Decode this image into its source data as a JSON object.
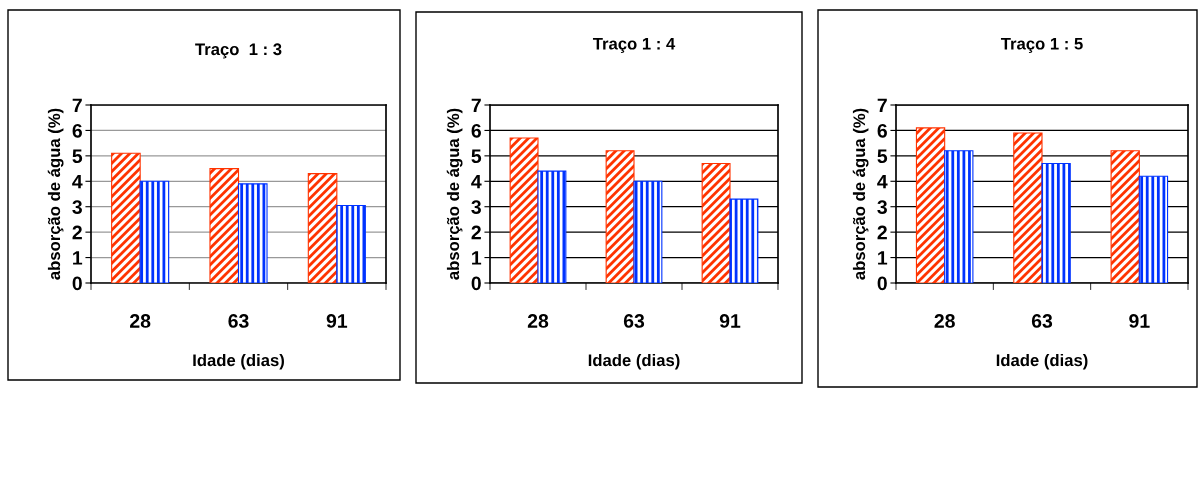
{
  "chart_data": [
    {
      "type": "bar",
      "title": "Traço  1 : 3",
      "xlabel": "Idade (dias)",
      "ylabel": "absorção de água (%)",
      "categories": [
        "28",
        "63",
        "91"
      ],
      "series": [
        {
          "color": "#ff3300",
          "values": [
            5.1,
            4.5,
            4.3
          ]
        },
        {
          "color": "#0033ff",
          "values": [
            4.0,
            3.9,
            3.05
          ]
        }
      ],
      "ylim": [
        0,
        7
      ],
      "yticks": [
        0,
        1,
        2,
        3,
        4,
        5,
        6,
        7
      ],
      "grid": "y"
    },
    {
      "type": "bar",
      "title": "Traço 1 : 4",
      "xlabel": "Idade (dias)",
      "ylabel": "absorção de água (%)",
      "categories": [
        "28",
        "63",
        "91"
      ],
      "series": [
        {
          "color": "#ff3300",
          "values": [
            5.7,
            5.2,
            4.7
          ]
        },
        {
          "color": "#0033ff",
          "values": [
            4.4,
            4.0,
            3.3
          ]
        }
      ],
      "ylim": [
        0,
        7
      ],
      "yticks": [
        0,
        1,
        2,
        3,
        4,
        5,
        6,
        7
      ],
      "grid": "y"
    },
    {
      "type": "bar",
      "title": "Traço 1 : 5",
      "xlabel": "Idade (dias)",
      "ylabel": "absorção de água (%)",
      "categories": [
        "28",
        "63",
        "91"
      ],
      "series": [
        {
          "color": "#ff3300",
          "values": [
            6.1,
            5.9,
            5.2
          ]
        },
        {
          "color": "#0033ff",
          "values": [
            5.2,
            4.7,
            4.2
          ]
        }
      ],
      "ylim": [
        0,
        7
      ],
      "yticks": [
        0,
        1,
        2,
        3,
        4,
        5,
        6,
        7
      ],
      "grid": "y"
    }
  ]
}
